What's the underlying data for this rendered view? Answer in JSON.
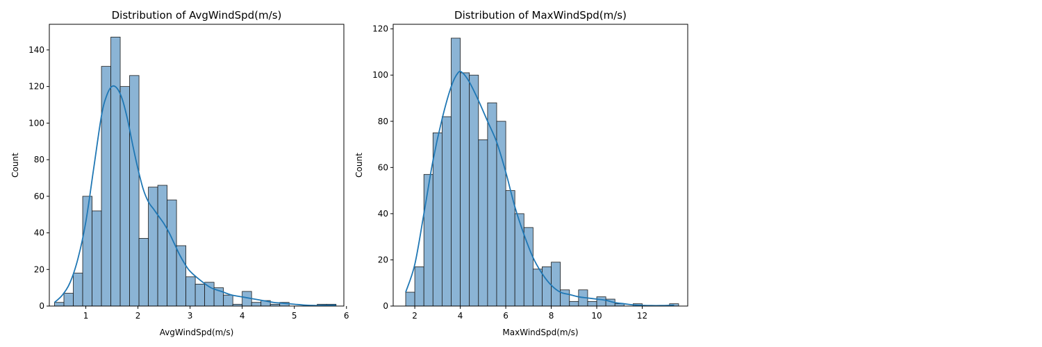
{
  "colors": {
    "bar_fill": "#8bb4d5",
    "bar_edge": "#1a1a1a",
    "kde_line": "#1f77b4",
    "axis": "#000000",
    "background": "#ffffff"
  },
  "chart_data": [
    {
      "type": "bar",
      "title": "Distribution of AvgWindSpd(m/s)",
      "xlabel": "AvgWindSpd(m/s)",
      "ylabel": "Count",
      "xlim": [
        0.3,
        5.95
      ],
      "ylim": [
        0,
        154
      ],
      "xticks": [
        1,
        2,
        3,
        4,
        5,
        6
      ],
      "yticks": [
        0,
        20,
        40,
        60,
        80,
        100,
        120,
        140
      ],
      "grid": false,
      "bins": {
        "start": 0.4,
        "width": 0.18
      },
      "values": [
        2,
        7,
        18,
        60,
        52,
        131,
        147,
        120,
        126,
        37,
        65,
        66,
        58,
        33,
        16,
        12,
        13,
        10,
        6,
        1,
        8,
        2,
        3,
        1,
        2,
        0,
        0,
        0,
        1,
        1
      ],
      "kde": {
        "x": [
          0.4,
          0.55,
          0.7,
          0.85,
          1.0,
          1.15,
          1.3,
          1.4,
          1.5,
          1.6,
          1.7,
          1.8,
          1.9,
          2.0,
          2.1,
          2.2,
          2.3,
          2.4,
          2.5,
          2.6,
          2.7,
          2.8,
          2.9,
          3.0,
          3.2,
          3.4,
          3.6,
          3.8,
          4.0,
          4.2,
          4.4,
          4.6,
          4.8,
          5.0,
          5.2,
          5.4,
          5.6,
          5.8
        ],
        "y": [
          2,
          6,
          13,
          26,
          46,
          75,
          104,
          115,
          120,
          119,
          113,
          102,
          88,
          75,
          64,
          57,
          53,
          49,
          45,
          40,
          34,
          28,
          23,
          19,
          14,
          10,
          8,
          6,
          5,
          4,
          3,
          2,
          1.5,
          1,
          0.5,
          0.3,
          0.4,
          0.5
        ]
      }
    },
    {
      "type": "bar",
      "title": "Distribution of MaxWindSpd(m/s)",
      "xlabel": "MaxWindSpd(m/s)",
      "ylabel": "Count",
      "xlim": [
        1.05,
        14.0
      ],
      "ylim": [
        0,
        122
      ],
      "xticks": [
        2,
        4,
        6,
        8,
        10,
        12
      ],
      "yticks": [
        0,
        20,
        40,
        60,
        80,
        100,
        120
      ],
      "grid": false,
      "bins": {
        "start": 1.6,
        "width": 0.4
      },
      "values": [
        6,
        17,
        57,
        75,
        82,
        116,
        101,
        100,
        72,
        88,
        80,
        50,
        40,
        34,
        16,
        17,
        19,
        7,
        2,
        7,
        2,
        4,
        3,
        1,
        0,
        1,
        0,
        0,
        0,
        1
      ],
      "kde": {
        "x": [
          1.6,
          2.0,
          2.4,
          2.8,
          3.2,
          3.6,
          3.9,
          4.1,
          4.4,
          4.8,
          5.2,
          5.6,
          6.0,
          6.4,
          6.8,
          7.2,
          7.6,
          8.0,
          8.4,
          8.8,
          9.2,
          9.6,
          10.0,
          10.4,
          10.8,
          11.2,
          11.6,
          12.0,
          12.4,
          12.8,
          13.2,
          13.4
        ],
        "y": [
          6,
          18,
          40,
          63,
          81,
          95,
          101,
          101,
          97,
          89,
          80,
          71,
          58,
          43,
          31,
          21,
          14,
          9,
          6,
          5,
          4,
          3.5,
          3,
          2.5,
          1.5,
          1,
          0.5,
          0.3,
          0.2,
          0.2,
          0.3,
          0.4
        ]
      }
    }
  ]
}
